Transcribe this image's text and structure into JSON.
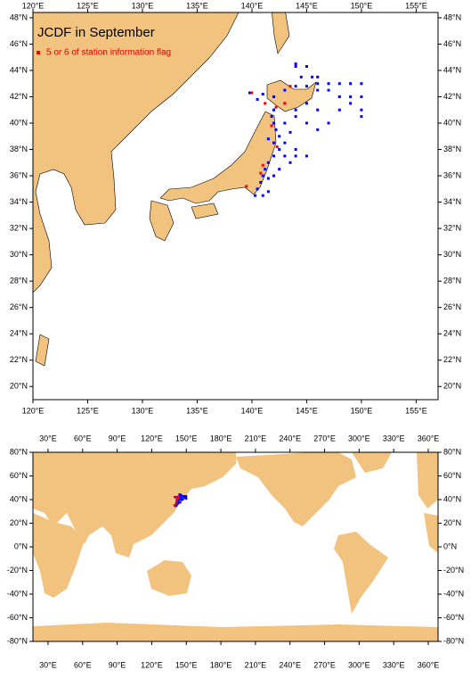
{
  "title": "JCDF in September",
  "legend": {
    "label": "5 or 6 of station information flag",
    "color": "#ff0000"
  },
  "regional_map": {
    "xlim": [
      120,
      157
    ],
    "ylim": [
      19,
      48.4
    ],
    "xticks": [
      {
        "value": 120,
        "label": "120°E"
      },
      {
        "value": 125,
        "label": "125°E"
      },
      {
        "value": 130,
        "label": "130°E"
      },
      {
        "value": 135,
        "label": "135°E"
      },
      {
        "value": 140,
        "label": "140°E"
      },
      {
        "value": 145,
        "label": "145°E"
      },
      {
        "value": 150,
        "label": "150°E"
      },
      {
        "value": 155,
        "label": "155°E"
      }
    ],
    "yticks": [
      {
        "value": 20,
        "label": "20°N"
      },
      {
        "value": 22,
        "label": "22°N"
      },
      {
        "value": 24,
        "label": "24°N"
      },
      {
        "value": 26,
        "label": "26°N"
      },
      {
        "value": 28,
        "label": "28°N"
      },
      {
        "value": 30,
        "label": "30°N"
      },
      {
        "value": 32,
        "label": "32°N"
      },
      {
        "value": 34,
        "label": "34°N"
      },
      {
        "value": 36,
        "label": "36°N"
      },
      {
        "value": 38,
        "label": "38°N"
      },
      {
        "value": 40,
        "label": "40°N"
      },
      {
        "value": 42,
        "label": "42°N"
      },
      {
        "value": 44,
        "label": "44°N"
      },
      {
        "value": 46,
        "label": "46°N"
      },
      {
        "value": 48,
        "label": "48°N"
      }
    ]
  },
  "global_map": {
    "xlim": [
      16.9,
      368.5
    ],
    "ylim": [
      -80,
      80
    ],
    "xticks": [
      {
        "value": 30,
        "label": "30°E"
      },
      {
        "value": 60,
        "label": "60°E"
      },
      {
        "value": 90,
        "label": "90°E"
      },
      {
        "value": 120,
        "label": "120°E"
      },
      {
        "value": 150,
        "label": "150°E"
      },
      {
        "value": 180,
        "label": "180°E"
      },
      {
        "value": 210,
        "label": "210°E"
      },
      {
        "value": 240,
        "label": "240°E"
      },
      {
        "value": 270,
        "label": "270°E"
      },
      {
        "value": 300,
        "label": "300°E"
      },
      {
        "value": 330,
        "label": "330°E"
      },
      {
        "value": 360,
        "label": "360°E"
      }
    ],
    "yticks": [
      {
        "value": 80,
        "label": "80°N"
      },
      {
        "value": 60,
        "label": "60°N"
      },
      {
        "value": 40,
        "label": "40°N"
      },
      {
        "value": 20,
        "label": "20°N"
      },
      {
        "value": 0,
        "label": "0°N"
      },
      {
        "value": -20,
        "label": "-20°N"
      },
      {
        "value": -40,
        "label": "-40°N"
      },
      {
        "value": -60,
        "label": "-60°N"
      },
      {
        "value": -80,
        "label": "-80°N"
      }
    ]
  },
  "stations": [
    {
      "color": "#0000ff",
      "points": [
        [
          144,
          44.3
        ],
        [
          145,
          44.3
        ],
        [
          144.5,
          43.5
        ],
        [
          145.5,
          43.5
        ],
        [
          146,
          43
        ],
        [
          147,
          43
        ],
        [
          148,
          43
        ],
        [
          149,
          43
        ],
        [
          150,
          43
        ],
        [
          146,
          42.5
        ],
        [
          147,
          42.5
        ],
        [
          148,
          42
        ],
        [
          149,
          42
        ],
        [
          150,
          42
        ],
        [
          150,
          41
        ],
        [
          150,
          40.5
        ],
        [
          149,
          41.5
        ],
        [
          148,
          41
        ],
        [
          147,
          40
        ],
        [
          146,
          39.5
        ],
        [
          145,
          40
        ],
        [
          144,
          41
        ],
        [
          143,
          41.5
        ],
        [
          142,
          42
        ],
        [
          143,
          42.5
        ],
        [
          144,
          42.8
        ],
        [
          145,
          42.8
        ],
        [
          142,
          41
        ],
        [
          141.8,
          40.5
        ],
        [
          142,
          40
        ],
        [
          142.2,
          39.5
        ],
        [
          142.5,
          39
        ],
        [
          143,
          38.5
        ],
        [
          142.5,
          38
        ],
        [
          143,
          37.5
        ],
        [
          144,
          37.5
        ],
        [
          145,
          37.5
        ],
        [
          143.5,
          37
        ],
        [
          142,
          37.5
        ],
        [
          141.5,
          37
        ],
        [
          141.2,
          36.5
        ],
        [
          141,
          36
        ],
        [
          140.8,
          35.5
        ],
        [
          141.5,
          35.8
        ],
        [
          142,
          36
        ],
        [
          140.5,
          35
        ],
        [
          140.3,
          34.5
        ],
        [
          141,
          34.5
        ],
        [
          144,
          38
        ],
        [
          142,
          38.5
        ],
        [
          141.5,
          38.8
        ],
        [
          146,
          41
        ],
        [
          145,
          41.5
        ],
        [
          144,
          40.5
        ],
        [
          143,
          40
        ],
        [
          141,
          42.2
        ],
        [
          140.5,
          41.8
        ],
        [
          139.8,
          42.3
        ],
        [
          144,
          44.5
        ],
        [
          146,
          43.5
        ],
        [
          143.5,
          39.3
        ],
        [
          142.5,
          36.5
        ],
        [
          141.5,
          34.8
        ]
      ]
    },
    {
      "color": "#ff0000",
      "points": [
        [
          143.5,
          42.8
        ],
        [
          142.2,
          41.2
        ],
        [
          141.8,
          39.8
        ],
        [
          142.3,
          38.2
        ],
        [
          141,
          36.8
        ],
        [
          140.8,
          36.2
        ],
        [
          139.5,
          35.2
        ],
        [
          143,
          41.5
        ],
        [
          141.2,
          41.5
        ],
        [
          140,
          42.3
        ]
      ]
    }
  ]
}
